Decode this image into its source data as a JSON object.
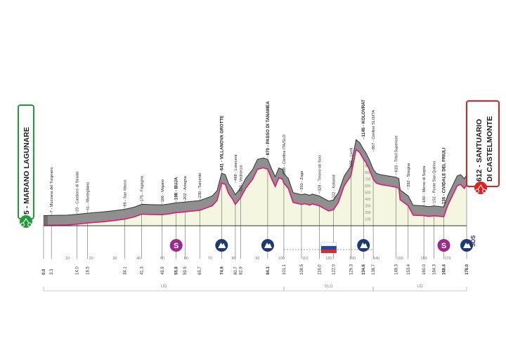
{
  "start_label": "5 - MARANO LAGUNARE",
  "finish_label": [
    "612 - SANTUARIO",
    "DI CASTELMONTE"
  ],
  "colors": {
    "accent": "#e0187c",
    "start_green": "#1f9b3a",
    "finish_red": "#e02020",
    "profile_fill": "#f4f6e0",
    "profile_band": "#8f8f8f",
    "sprint_purple": "#9b2a8c",
    "kom_navy": "#1f3a70",
    "sds_navy": "#2c3560"
  },
  "chart_data": {
    "type": "area",
    "xlim": [
      0,
      178.0
    ],
    "ylim": [
      0,
      1200
    ],
    "elevation_ticks": [
      100,
      200,
      300,
      400,
      500,
      600,
      700,
      800,
      900
    ],
    "profile": [
      [
        0,
        5
      ],
      [
        3.3,
        7
      ],
      [
        10,
        12
      ],
      [
        14,
        23
      ],
      [
        18.5,
        41
      ],
      [
        25,
        60
      ],
      [
        30,
        80
      ],
      [
        34.1,
        99
      ],
      [
        38,
        130
      ],
      [
        41.3,
        175
      ],
      [
        45,
        170
      ],
      [
        49.9,
        166
      ],
      [
        53,
        180
      ],
      [
        55.8,
        198
      ],
      [
        58,
        202
      ],
      [
        61,
        215
      ],
      [
        65.7,
        230
      ],
      [
        68,
        260
      ],
      [
        71,
        300
      ],
      [
        73,
        380
      ],
      [
        74.9,
        641
      ],
      [
        76.5,
        620
      ],
      [
        77.8,
        488
      ],
      [
        79.5,
        400
      ],
      [
        80.7,
        320
      ],
      [
        82.9,
        420
      ],
      [
        85,
        560
      ],
      [
        88,
        700
      ],
      [
        90,
        850
      ],
      [
        92.5,
        870
      ],
      [
        94.3,
        850
      ],
      [
        96,
        700
      ],
      [
        97.5,
        588
      ],
      [
        99,
        720
      ],
      [
        100.5,
        700
      ],
      [
        101.1,
        640
      ],
      [
        103,
        560
      ],
      [
        105,
        350
      ],
      [
        108.5,
        320
      ],
      [
        110,
        330
      ],
      [
        112,
        310
      ],
      [
        113,
        328
      ],
      [
        116,
        300
      ],
      [
        118,
        260
      ],
      [
        120,
        222
      ],
      [
        122,
        240
      ],
      [
        124,
        350
      ],
      [
        126.5,
        600
      ],
      [
        129.3,
        750
      ],
      [
        131.5,
        1145
      ],
      [
        133,
        1100
      ],
      [
        134.6,
        1000
      ],
      [
        135.5,
        957
      ],
      [
        137,
        850
      ],
      [
        138.7,
        700
      ],
      [
        140,
        640
      ],
      [
        142,
        618
      ],
      [
        145,
        600
      ],
      [
        148.3,
        580
      ],
      [
        149.5,
        560
      ],
      [
        150,
        392
      ],
      [
        153.4,
        300
      ],
      [
        155.5,
        160
      ],
      [
        158,
        155
      ],
      [
        160,
        152
      ],
      [
        162,
        140
      ],
      [
        164.3,
        150
      ],
      [
        168.4,
        135
      ],
      [
        170,
        300
      ],
      [
        172,
        450
      ],
      [
        174,
        600
      ],
      [
        175.5,
        620
      ],
      [
        177,
        560
      ],
      [
        178,
        612
      ]
    ],
    "tick_labels": [
      {
        "x": 0,
        "label": "0.0",
        "bold": true
      },
      {
        "x": 3.3,
        "label": "3.3"
      },
      {
        "x": 14,
        "label": "14.0"
      },
      {
        "x": 18.5,
        "label": "18.5"
      },
      {
        "x": 34.1,
        "label": "34.1"
      },
      {
        "x": 41.3,
        "label": "41.3"
      },
      {
        "x": 49.9,
        "label": "49.9"
      },
      {
        "x": 55.8,
        "label": "55.8",
        "bold": true
      },
      {
        "x": 59.5,
        "label": "59.5"
      },
      {
        "x": 65.7,
        "label": "65.7"
      },
      {
        "x": 74.9,
        "label": "74.9",
        "bold": true
      },
      {
        "x": 80.7,
        "label": "80.7"
      },
      {
        "x": 82.9,
        "label": "82.9"
      },
      {
        "x": 94.3,
        "label": "94.3",
        "bold": true
      },
      {
        "x": 101.1,
        "label": "101.1"
      },
      {
        "x": 108.5,
        "label": "108.5"
      },
      {
        "x": 116,
        "label": "116.0"
      },
      {
        "x": 122,
        "label": "122.0"
      },
      {
        "x": 129.3,
        "label": "129.3"
      },
      {
        "x": 134.6,
        "label": "134.6",
        "bold": true
      },
      {
        "x": 138.7,
        "label": "138.7"
      },
      {
        "x": 148.3,
        "label": "148.3"
      },
      {
        "x": 153.4,
        "label": "153.4"
      },
      {
        "x": 160,
        "label": "160.0"
      },
      {
        "x": 164.3,
        "label": "164.3"
      },
      {
        "x": 168.4,
        "label": "168.4",
        "bold": true
      },
      {
        "x": 178,
        "label": "178.0",
        "bold": true
      }
    ],
    "axis_numbers": [
      {
        "x": 10,
        "label": "10"
      },
      {
        "x": 20,
        "label": "20"
      },
      {
        "x": 30,
        "label": "30"
      },
      {
        "x": 40,
        "label": "40"
      },
      {
        "x": 50,
        "label": "50"
      },
      {
        "x": 60,
        "label": "60"
      },
      {
        "x": 70,
        "label": "70"
      },
      {
        "x": 80,
        "label": "80"
      },
      {
        "x": 90,
        "label": "90"
      },
      {
        "x": 100,
        "label": "100"
      },
      {
        "x": 110,
        "label": "110"
      },
      {
        "x": 120,
        "label": "120"
      },
      {
        "x": 130,
        "label": "130"
      },
      {
        "x": 140,
        "label": "140"
      },
      {
        "x": 150,
        "label": "150"
      },
      {
        "x": 160,
        "label": "160"
      },
      {
        "x": 170,
        "label": "170"
      }
    ],
    "places": [
      {
        "x": 3.3,
        "alt": 7,
        "name": "7 - Muzzana del Turgnano"
      },
      {
        "x": 14,
        "alt": 23,
        "name": "23 - Castions di Strada"
      },
      {
        "x": 18.5,
        "alt": 41,
        "name": "41 - Mortegliano"
      },
      {
        "x": 34.1,
        "alt": 99,
        "name": "99 - San Marco"
      },
      {
        "x": 41.3,
        "alt": 175,
        "name": "175 - Fagagna"
      },
      {
        "x": 49.9,
        "alt": 166,
        "name": "166 - Majano"
      },
      {
        "x": 55.8,
        "alt": 198,
        "name": "198 - BUJA",
        "bold": true
      },
      {
        "x": 59.5,
        "alt": 202,
        "name": "202 - Artegna"
      },
      {
        "x": 65.7,
        "alt": 230,
        "name": "230 - Tarcento"
      },
      {
        "x": 74.9,
        "alt": 641,
        "name": "641 - VILLANOVA GROTTE",
        "bold": true
      },
      {
        "x": 80.7,
        "alt": 488,
        "name": "488 - Lusevera"
      },
      {
        "x": 82.9,
        "alt": 320,
        "name": "320 - Vedronza"
      },
      {
        "x": 94.3,
        "alt": 870,
        "name": "870 - PASSO DI TANAMEA",
        "bold": true
      },
      {
        "x": 101.1,
        "alt": 588,
        "name": "588 - Confine ITA/SLO"
      },
      {
        "x": 108.5,
        "alt": 350,
        "name": "350 - Zaga"
      },
      {
        "x": 116,
        "alt": 328,
        "name": "328 - Trnovo ob Soci"
      },
      {
        "x": 122,
        "alt": 222,
        "name": "222 - Kobarid"
      },
      {
        "x": 129.3,
        "alt": 695,
        "name": "695 - Livek"
      },
      {
        "x": 134.6,
        "alt": 1145,
        "name": "1145 - KOLOVRAT",
        "bold": true
      },
      {
        "x": 138.7,
        "alt": 957,
        "name": "957 - Confine SLO/ITA"
      },
      {
        "x": 148.3,
        "alt": 618,
        "name": "618 - Tribil Superiore"
      },
      {
        "x": 153.4,
        "alt": 392,
        "name": "392 - Stregna"
      },
      {
        "x": 160,
        "alt": 160,
        "name": "160 - Merso di Sopra"
      },
      {
        "x": 164.3,
        "alt": 152,
        "name": "152 - Ponte San Quirino"
      },
      {
        "x": 168.4,
        "alt": 135,
        "name": "135 - CIVIDALE DEL FRIULI",
        "bold": true
      }
    ],
    "markers": [
      {
        "x": 55.8,
        "type": "sprint",
        "symbol": "S"
      },
      {
        "x": 74.9,
        "type": "kom"
      },
      {
        "x": 94.3,
        "type": "kom"
      },
      {
        "x": 134.6,
        "type": "kom"
      },
      {
        "x": 168.4,
        "type": "sprint",
        "symbol": "S"
      },
      {
        "x": 178,
        "type": "kom"
      }
    ],
    "finish_tag": "SDS",
    "regions": [
      {
        "from": 0,
        "to": 101.1,
        "label": "UD"
      },
      {
        "from": 101.1,
        "to": 138.7,
        "label": "SLO"
      },
      {
        "from": 138.7,
        "to": 178,
        "label": "UD"
      }
    ]
  }
}
